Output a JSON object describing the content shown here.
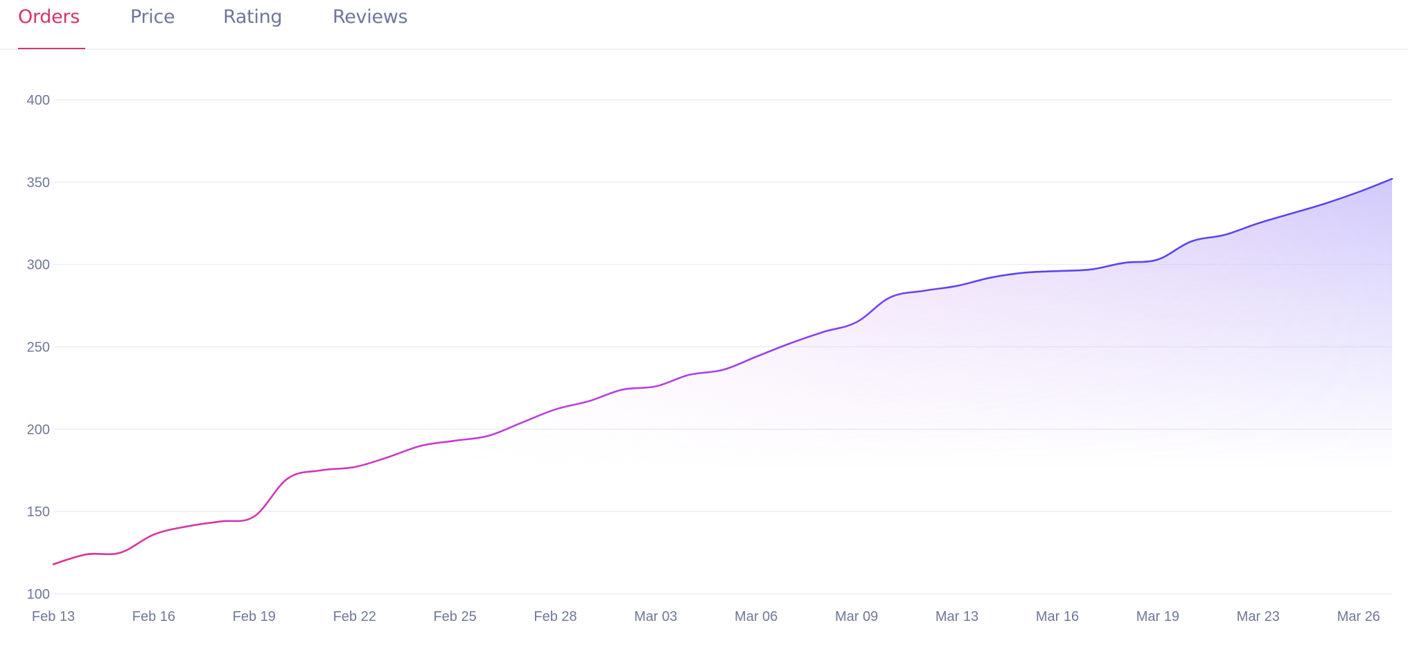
{
  "tabs": [
    {
      "label": "Orders",
      "active": true
    },
    {
      "label": "Price",
      "active": false
    },
    {
      "label": "Rating",
      "active": false
    },
    {
      "label": "Reviews",
      "active": false
    }
  ],
  "colors": {
    "active_tab": "#d6336c",
    "inactive_tab": "#6e7799",
    "grid": "#e9edf7",
    "line_start": "#e0338c",
    "line_mid": "#b43ff0",
    "line_end": "#5b45f0",
    "fill_start": "#f4c6f0",
    "fill_end": "#c9c0fa"
  },
  "chart_data": {
    "type": "area",
    "title": "",
    "xlabel": "",
    "ylabel": "",
    "ylim": [
      100,
      400
    ],
    "yticks": [
      100,
      150,
      200,
      250,
      300,
      350,
      400
    ],
    "grid": true,
    "legend": "none",
    "xtick_labels": [
      "Feb 13",
      "Feb 16",
      "Feb 19",
      "Feb 22",
      "Feb 25",
      "Feb 28",
      "Mar 03",
      "Mar 06",
      "Mar 09",
      "Mar 13",
      "Mar 16",
      "Mar 19",
      "Mar 23",
      "Mar 26"
    ],
    "xtick_every": 3,
    "series": [
      {
        "name": "Orders",
        "values": [
          118,
          124,
          125,
          136,
          141,
          144,
          147,
          170,
          175,
          177,
          183,
          190,
          193,
          196,
          204,
          212,
          217,
          224,
          226,
          233,
          236,
          244,
          252,
          259,
          265,
          280,
          284,
          287,
          292,
          295,
          296,
          297,
          301,
          303,
          314,
          318,
          325,
          331,
          337,
          344,
          352
        ]
      }
    ]
  }
}
